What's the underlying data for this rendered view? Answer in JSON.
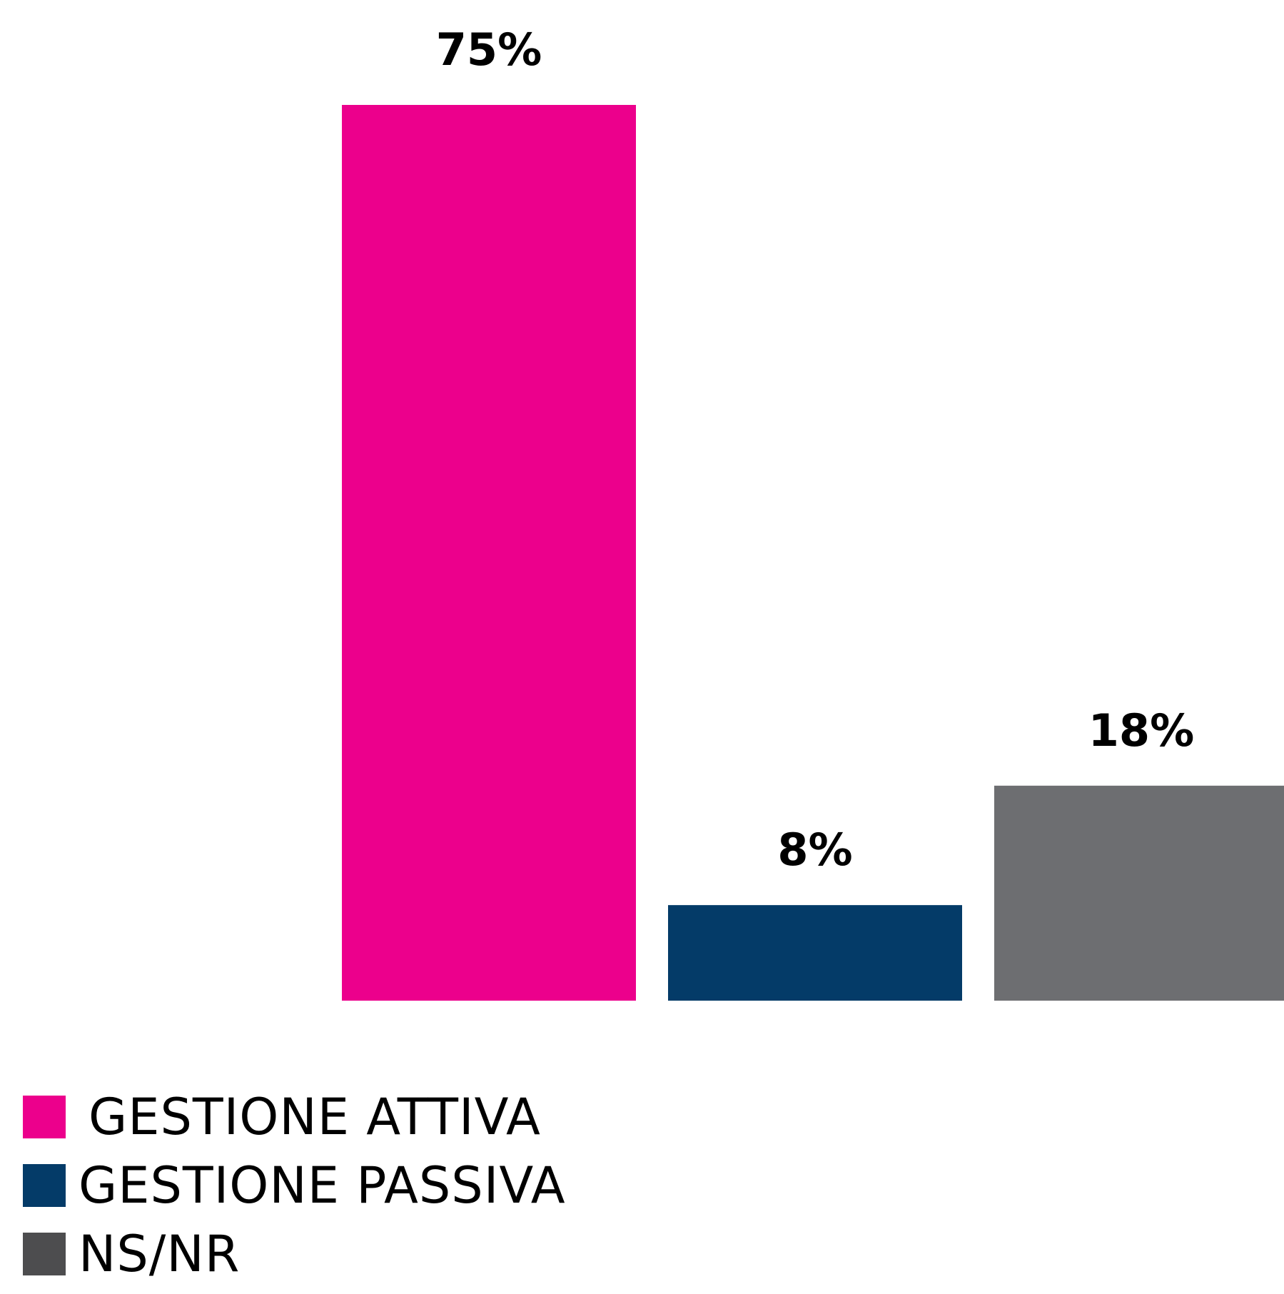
{
  "chart_data": {
    "type": "bar",
    "categories": [
      "GESTIONE ATTIVA",
      "GESTIONE PASSIVA",
      "NS/NR"
    ],
    "values": [
      75,
      8,
      18
    ],
    "value_labels": [
      "75%",
      "8%",
      "18%"
    ],
    "unit": "%",
    "colors": [
      "#EC008C",
      "#043B68",
      "#6D6E71"
    ],
    "ylim": [
      0,
      75
    ],
    "grid": false,
    "axes_visible": false,
    "legend_position": "bottom-left"
  },
  "legend": {
    "items": [
      {
        "label": "GESTIONE ATTIVA",
        "color": "#EC008C"
      },
      {
        "label": "GESTIONE PASSIVA",
        "color": "#043B68"
      },
      {
        "label": "NS/NR",
        "color": "#4D4D4F"
      }
    ]
  }
}
